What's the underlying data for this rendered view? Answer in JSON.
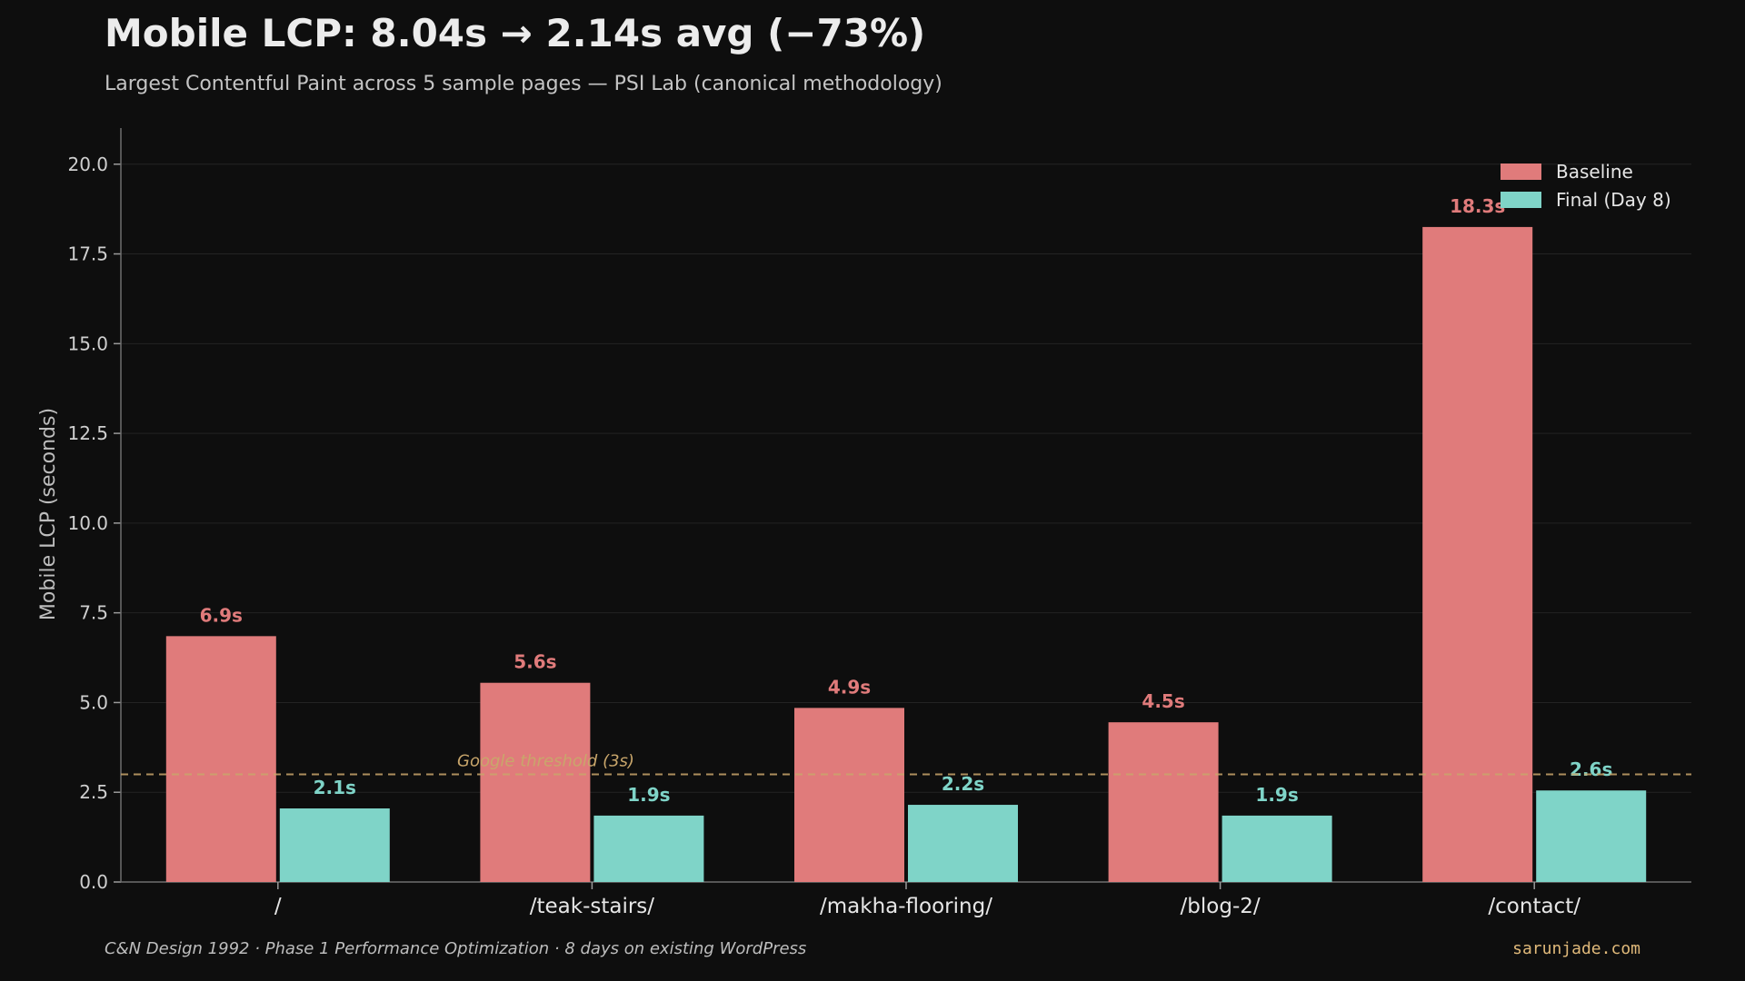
{
  "title": "Mobile LCP: 8.04s → 2.14s avg (−73%)",
  "subtitle": "Largest Contentful Paint across 5 sample pages — PSI Lab (canonical methodology)",
  "footer": {
    "left": "C&N Design 1992 · Phase 1 Performance Optimization · 8 days on existing WordPress",
    "right": "sarunjade.com"
  },
  "colors": {
    "baseline": "#e07b7b",
    "final": "#7fd4c8",
    "threshold": "#c9a66b",
    "background": "#0e0e0e"
  },
  "chart_data": {
    "type": "bar",
    "ylabel": "Mobile LCP (seconds)",
    "xlabel": "",
    "ylim": [
      0,
      20.5
    ],
    "yticks": [
      0.0,
      2.5,
      5.0,
      7.5,
      10.0,
      12.5,
      15.0,
      17.5,
      20.0
    ],
    "ytick_labels": [
      "0.0",
      "2.5",
      "5.0",
      "7.5",
      "10.0",
      "12.5",
      "15.0",
      "17.5",
      "20.0"
    ],
    "grid": true,
    "legend_position": "top-right",
    "categories": [
      "/",
      "/teak-stairs/",
      "/makha-flooring/",
      "/blog-2/",
      "/contact/"
    ],
    "series": [
      {
        "name": "Baseline",
        "values": [
          6.85,
          5.55,
          4.85,
          4.45,
          18.25
        ],
        "labels": [
          "6.9s",
          "5.6s",
          "4.9s",
          "4.5s",
          "18.3s"
        ]
      },
      {
        "name": "Final (Day 8)",
        "values": [
          2.05,
          1.85,
          2.15,
          1.85,
          2.55
        ],
        "labels": [
          "2.1s",
          "1.9s",
          "2.2s",
          "1.9s",
          "2.6s"
        ]
      }
    ],
    "threshold": {
      "value": 3.0,
      "label": "Google threshold (3s)"
    }
  }
}
